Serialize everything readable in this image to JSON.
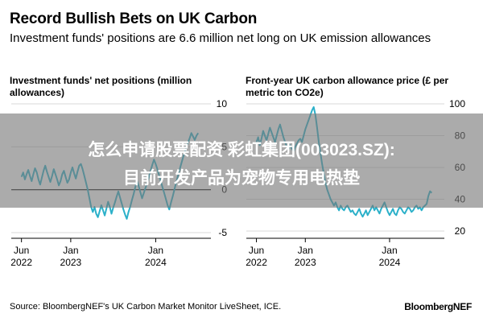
{
  "header": {
    "title": "Record Bullish Bets on UK Carbon",
    "subtitle": "Investment funds' positions are 6.6 million net long on UK emission allowances"
  },
  "overlay": {
    "line1": "怎么申请股票配资 彩虹集团(003023.SZ):",
    "line2": "目前开发产品为宠物专用电热垫"
  },
  "footer": {
    "source": "Source: BloombergNEF's UK Carbon Market Monitor LiveSheet, ICE.",
    "brand": "BloombergNEF"
  },
  "colors": {
    "line": "#2bb0c9",
    "zero": "#000000",
    "grid": "#d9d9d9"
  },
  "chart_data": [
    {
      "type": "line",
      "title": "Investment funds' net positions (million allowances)",
      "y_axis_side": "right",
      "y_ticks": [
        10,
        5,
        0,
        -5
      ],
      "ylim": [
        -5,
        10
      ],
      "x_ticks": [
        {
          "line1": "Jun",
          "line2": "2022",
          "x": 2022.42
        },
        {
          "line1": "Jan",
          "line2": "2023",
          "x": 2023.0
        },
        {
          "line1": "Jan",
          "line2": "2024",
          "x": 2024.0
        }
      ],
      "xlim": [
        2022.3,
        2024.65
      ],
      "series": [
        {
          "x": [
            2022.42,
            2022.44,
            2022.46,
            2022.48,
            2022.5,
            2022.52,
            2022.54,
            2022.56,
            2022.58,
            2022.6,
            2022.62,
            2022.64,
            2022.66,
            2022.68,
            2022.7,
            2022.72,
            2022.74,
            2022.76,
            2022.78,
            2022.8,
            2022.82,
            2022.84,
            2022.86,
            2022.88,
            2022.9,
            2022.92,
            2022.94,
            2022.96,
            2022.98,
            2023.0,
            2023.02,
            2023.04,
            2023.06,
            2023.08,
            2023.1,
            2023.12,
            2023.14,
            2023.16,
            2023.18,
            2023.2,
            2023.22,
            2023.24,
            2023.26,
            2023.28,
            2023.3,
            2023.32,
            2023.34,
            2023.36,
            2023.38,
            2023.4,
            2023.42,
            2023.44,
            2023.46,
            2023.48,
            2023.5,
            2023.52,
            2023.54,
            2023.56,
            2023.58,
            2023.6,
            2023.62,
            2023.64,
            2023.66,
            2023.68,
            2023.7,
            2023.72,
            2023.74,
            2023.76,
            2023.78,
            2023.8,
            2023.82,
            2023.84,
            2023.86,
            2023.88,
            2023.9,
            2023.92,
            2023.94,
            2023.96,
            2023.98,
            2024.0,
            2024.02,
            2024.04,
            2024.06,
            2024.08,
            2024.1,
            2024.12,
            2024.14,
            2024.16,
            2024.18,
            2024.2,
            2024.22,
            2024.24,
            2024.26,
            2024.28,
            2024.3,
            2024.32,
            2024.34,
            2024.36,
            2024.38,
            2024.4,
            2024.42,
            2024.44,
            2024.46,
            2024.48,
            2024.5
          ],
          "y": [
            1.5,
            2.0,
            1.2,
            1.8,
            2.3,
            1.6,
            1.0,
            1.8,
            2.5,
            2.0,
            1.2,
            0.6,
            1.4,
            2.2,
            2.8,
            2.1,
            1.5,
            0.9,
            1.6,
            2.4,
            1.8,
            1.2,
            0.5,
            1.0,
            1.8,
            2.2,
            1.5,
            0.8,
            1.2,
            2.0,
            2.6,
            1.9,
            1.3,
            2.1,
            2.8,
            3.0,
            2.4,
            1.6,
            0.8,
            0.0,
            -1.0,
            -2.0,
            -2.6,
            -2.0,
            -2.8,
            -3.2,
            -2.5,
            -1.8,
            -2.4,
            -3.0,
            -2.2,
            -1.4,
            -2.0,
            -2.8,
            -2.1,
            -1.5,
            -0.8,
            -0.2,
            -0.9,
            -1.6,
            -2.3,
            -2.9,
            -3.4,
            -2.6,
            -2.0,
            -1.2,
            -0.5,
            0.3,
            1.0,
            0.4,
            -0.3,
            -1.0,
            -0.4,
            0.2,
            0.8,
            1.5,
            2.2,
            2.9,
            3.5,
            3.0,
            2.4,
            1.7,
            1.0,
            0.3,
            -0.4,
            -1.1,
            -1.8,
            -2.3,
            -1.5,
            -0.8,
            0.0,
            0.8,
            1.5,
            2.3,
            3.0,
            3.7,
            4.3,
            5.0,
            5.5,
            6.0,
            6.6,
            6.2,
            5.8,
            6.3,
            6.6
          ]
        }
      ]
    },
    {
      "type": "line",
      "title": "Front-year UK carbon allowance price (£ per metric ton CO2e)",
      "y_axis_side": "right",
      "y_ticks": [
        100,
        80,
        60,
        40,
        20
      ],
      "ylim": [
        20,
        100
      ],
      "x_ticks": [
        {
          "line1": "Jun",
          "line2": "2022",
          "x": 2022.42
        },
        {
          "line1": "Jan",
          "line2": "2023",
          "x": 2023.0
        },
        {
          "line1": "Jan",
          "line2": "2024",
          "x": 2024.0
        }
      ],
      "xlim": [
        2022.3,
        2024.65
      ],
      "series": [
        {
          "x": [
            2022.42,
            2022.44,
            2022.46,
            2022.48,
            2022.5,
            2022.52,
            2022.54,
            2022.56,
            2022.58,
            2022.6,
            2022.62,
            2022.64,
            2022.66,
            2022.68,
            2022.7,
            2022.72,
            2022.74,
            2022.76,
            2022.78,
            2022.8,
            2022.82,
            2022.84,
            2022.86,
            2022.88,
            2022.9,
            2022.92,
            2022.94,
            2022.96,
            2022.98,
            2023.0,
            2023.02,
            2023.04,
            2023.06,
            2023.08,
            2023.1,
            2023.12,
            2023.14,
            2023.16,
            2023.18,
            2023.2,
            2023.22,
            2023.24,
            2023.26,
            2023.28,
            2023.3,
            2023.32,
            2023.34,
            2023.36,
            2023.38,
            2023.4,
            2023.42,
            2023.44,
            2023.46,
            2023.48,
            2023.5,
            2023.52,
            2023.54,
            2023.56,
            2023.58,
            2023.6,
            2023.62,
            2023.64,
            2023.66,
            2023.68,
            2023.7,
            2023.72,
            2023.74,
            2023.76,
            2023.78,
            2023.8,
            2023.82,
            2023.84,
            2023.86,
            2023.88,
            2023.9,
            2023.92,
            2023.94,
            2023.96,
            2023.98,
            2024.0,
            2024.02,
            2024.04,
            2024.06,
            2024.08,
            2024.1,
            2024.12,
            2024.14,
            2024.16,
            2024.18,
            2024.2,
            2024.22,
            2024.24,
            2024.26,
            2024.28,
            2024.3,
            2024.32,
            2024.34,
            2024.36,
            2024.38,
            2024.4,
            2024.42,
            2024.44,
            2024.46,
            2024.48,
            2024.5
          ],
          "y": [
            76,
            79,
            74,
            78,
            83,
            80,
            77,
            81,
            85,
            82,
            79,
            76,
            80,
            84,
            87,
            83,
            79,
            76,
            73,
            71,
            74,
            72,
            70,
            73,
            75,
            77,
            78,
            76,
            80,
            84,
            87,
            90,
            93,
            96,
            98,
            93,
            85,
            76,
            69,
            62,
            56,
            50,
            46,
            43,
            40,
            38,
            36,
            38,
            35,
            33,
            36,
            34,
            33,
            35,
            36,
            34,
            32,
            33,
            31,
            30,
            32,
            34,
            31,
            29,
            31,
            33,
            30,
            32,
            34,
            36,
            33,
            35,
            33,
            31,
            34,
            36,
            38,
            35,
            32,
            30,
            32,
            34,
            31,
            30,
            33,
            35,
            34,
            32,
            31,
            33,
            35,
            34,
            32,
            33,
            35,
            36,
            34,
            35,
            33,
            35,
            36,
            37,
            42,
            45,
            44
          ]
        }
      ]
    }
  ]
}
